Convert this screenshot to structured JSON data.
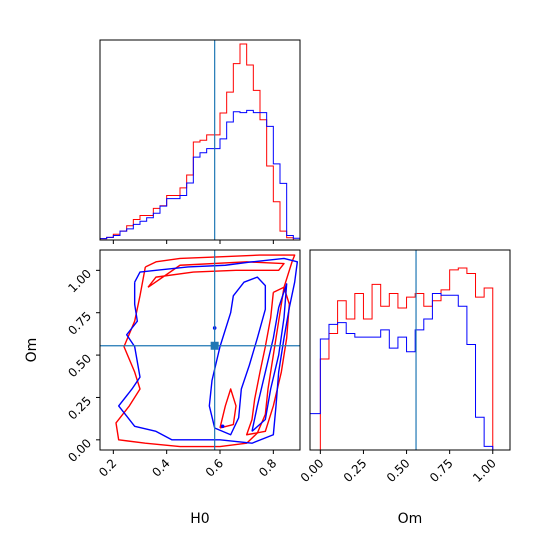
{
  "chart_data": {
    "type": "corner",
    "colors": {
      "red": "#ff0000",
      "blue": "#0000ff",
      "truth": "#1f77b4"
    },
    "truth": {
      "H0": 0.58,
      "Om": 0.555
    },
    "panels": [
      {
        "id": "hist-H0",
        "type": "histogram",
        "xlim": [
          0.15,
          0.9
        ],
        "bin_edges": [
          0.15,
          0.175,
          0.2,
          0.225,
          0.25,
          0.275,
          0.3,
          0.325,
          0.35,
          0.375,
          0.4,
          0.425,
          0.45,
          0.475,
          0.5,
          0.525,
          0.55,
          0.575,
          0.6,
          0.625,
          0.65,
          0.675,
          0.7,
          0.725,
          0.75,
          0.775,
          0.8,
          0.825,
          0.85,
          0.875,
          0.9
        ],
        "series": [
          {
            "color": "red",
            "values": [
              0.3,
              0.6,
              1.3,
              2.0,
              3.2,
              4.6,
              5.5,
              5.5,
              7.1,
              7.7,
              10.0,
              10.0,
              11.7,
              14.6,
              22.0,
              22.4,
              23.6,
              23.6,
              28.5,
              33.2,
              39.6,
              44.0,
              39.3,
              33.6,
              27.0,
              16.6,
              8.6,
              2.0,
              0.5,
              0.0
            ]
          },
          {
            "color": "blue",
            "values": [
              0.3,
              0.6,
              1.0,
              2.0,
              2.5,
              3.5,
              4.2,
              5.0,
              6.0,
              7.6,
              9.3,
              9.3,
              10.0,
              12.8,
              18.6,
              19.6,
              20.5,
              20.5,
              22.7,
              26.5,
              28.8,
              28.6,
              29.1,
              28.6,
              28.6,
              25.5,
              17.1,
              12.7,
              1.0,
              0.4
            ]
          }
        ]
      },
      {
        "id": "joint-H0-Om",
        "type": "contour",
        "xlabel": "H0",
        "ylabel": "Om",
        "xlim": [
          0.15,
          0.9
        ],
        "ylim": [
          -0.06,
          1.12
        ],
        "xticks": [
          0.2,
          0.4,
          0.6,
          0.8
        ],
        "xtick_labels": [
          "0.2",
          "0.4",
          "0.6",
          "0.8"
        ],
        "yticks": [
          0.0,
          0.25,
          0.5,
          0.75,
          1.0
        ],
        "ytick_labels": [
          "0.00",
          "0.25",
          "0.50",
          "0.75",
          "1.00"
        ],
        "contours": [
          {
            "color": "red",
            "points": [
              [
                0.32,
                1.02
              ],
              [
                0.36,
                1.05
              ],
              [
                0.45,
                1.07
              ],
              [
                0.6,
                1.08
              ],
              [
                0.75,
                1.09
              ],
              [
                0.88,
                1.09
              ],
              [
                0.87,
                1.05
              ],
              [
                0.84,
                0.9
              ],
              [
                0.82,
                0.7
              ],
              [
                0.8,
                0.5
              ],
              [
                0.78,
                0.3
              ],
              [
                0.77,
                0.15
              ],
              [
                0.74,
                0.04
              ],
              [
                0.7,
                -0.02
              ],
              [
                0.6,
                -0.04
              ],
              [
                0.45,
                -0.04
              ],
              [
                0.32,
                -0.02
              ],
              [
                0.22,
                0.0
              ],
              [
                0.21,
                0.1
              ],
              [
                0.26,
                0.2
              ],
              [
                0.3,
                0.3
              ],
              [
                0.28,
                0.4
              ],
              [
                0.24,
                0.55
              ],
              [
                0.28,
                0.7
              ],
              [
                0.3,
                0.85
              ],
              [
                0.32,
                1.02
              ]
            ]
          },
          {
            "color": "red",
            "points": [
              [
                0.8,
                0.87
              ],
              [
                0.79,
                0.72
              ],
              [
                0.77,
                0.55
              ],
              [
                0.75,
                0.4
              ],
              [
                0.73,
                0.24
              ],
              [
                0.72,
                0.12
              ],
              [
                0.7,
                0.03
              ],
              [
                0.77,
                0.05
              ],
              [
                0.8,
                0.2
              ],
              [
                0.83,
                0.4
              ],
              [
                0.85,
                0.6
              ],
              [
                0.86,
                0.8
              ],
              [
                0.84,
                0.9
              ],
              [
                0.8,
                0.87
              ]
            ]
          },
          {
            "color": "red",
            "points": [
              [
                0.6,
                0.07
              ],
              [
                0.62,
                0.2
              ],
              [
                0.64,
                0.3
              ],
              [
                0.66,
                0.2
              ],
              [
                0.65,
                0.09
              ],
              [
                0.6,
                0.07
              ]
            ]
          },
          {
            "color": "red",
            "points": [
              [
                0.33,
                0.9
              ],
              [
                0.36,
                0.96
              ],
              [
                0.5,
                0.99
              ],
              [
                0.66,
                1.0
              ],
              [
                0.82,
                1.0
              ],
              [
                0.84,
                1.04
              ],
              [
                0.7,
                1.05
              ],
              [
                0.45,
                1.03
              ],
              [
                0.33,
                0.9
              ]
            ]
          },
          {
            "color": "blue",
            "points": [
              [
                0.28,
                0.93
              ],
              [
                0.3,
                0.99
              ],
              [
                0.36,
                1.0
              ],
              [
                0.48,
                1.02
              ],
              [
                0.62,
                1.03
              ],
              [
                0.72,
                1.05
              ],
              [
                0.84,
                1.07
              ],
              [
                0.89,
                1.05
              ],
              [
                0.88,
                0.93
              ],
              [
                0.86,
                0.78
              ],
              [
                0.84,
                0.6
              ],
              [
                0.82,
                0.4
              ],
              [
                0.81,
                0.2
              ],
              [
                0.8,
                0.03
              ],
              [
                0.72,
                -0.02
              ],
              [
                0.6,
                0.0
              ],
              [
                0.42,
                0.0
              ],
              [
                0.36,
                0.05
              ],
              [
                0.28,
                0.08
              ],
              [
                0.22,
                0.2
              ],
              [
                0.27,
                0.3
              ],
              [
                0.3,
                0.37
              ],
              [
                0.28,
                0.55
              ],
              [
                0.25,
                0.62
              ],
              [
                0.29,
                0.7
              ],
              [
                0.28,
                0.8
              ],
              [
                0.28,
                0.93
              ]
            ]
          },
          {
            "color": "blue",
            "points": [
              [
                0.58,
                0.07
              ],
              [
                0.56,
                0.2
              ],
              [
                0.57,
                0.35
              ],
              [
                0.6,
                0.55
              ],
              [
                0.64,
                0.75
              ],
              [
                0.65,
                0.85
              ],
              [
                0.69,
                0.93
              ],
              [
                0.74,
                0.96
              ],
              [
                0.77,
                0.91
              ],
              [
                0.77,
                0.77
              ],
              [
                0.74,
                0.6
              ],
              [
                0.71,
                0.44
              ],
              [
                0.68,
                0.3
              ],
              [
                0.67,
                0.13
              ],
              [
                0.64,
                0.03
              ],
              [
                0.58,
                0.07
              ]
            ]
          },
          {
            "color": "blue",
            "points": [
              [
                0.72,
                0.05
              ],
              [
                0.74,
                0.2
              ],
              [
                0.77,
                0.4
              ],
              [
                0.8,
                0.6
              ],
              [
                0.82,
                0.78
              ],
              [
                0.85,
                0.92
              ],
              [
                0.84,
                0.72
              ],
              [
                0.82,
                0.5
              ],
              [
                0.79,
                0.3
              ],
              [
                0.77,
                0.12
              ],
              [
                0.72,
                0.05
              ]
            ]
          }
        ]
      },
      {
        "id": "hist-Om",
        "type": "histogram",
        "xlabel": "Om",
        "xlim": [
          -0.06,
          1.1
        ],
        "xticks": [
          0.0,
          0.25,
          0.5,
          0.75,
          1.0
        ],
        "xtick_labels": [
          "0.00",
          "0.25",
          "0.50",
          "0.75",
          "1.00"
        ],
        "bin_edges": [
          -0.06,
          0.0,
          0.05,
          0.1,
          0.15,
          0.2,
          0.25,
          0.3,
          0.35,
          0.4,
          0.45,
          0.5,
          0.55,
          0.6,
          0.65,
          0.7,
          0.75,
          0.8,
          0.85,
          0.9,
          0.95,
          1.0,
          1.05,
          1.1
        ],
        "series": [
          {
            "color": "red",
            "values": [
              0.0,
              0.5,
              0.64,
              0.82,
              0.72,
              0.86,
              0.72,
              0.91,
              0.79,
              0.86,
              0.78,
              0.84,
              0.86,
              0.79,
              0.82,
              0.88,
              0.99,
              1.0,
              0.97,
              0.84,
              0.89,
              0.0,
              0.0
            ]
          },
          {
            "color": "blue",
            "values": [
              0.2,
              0.61,
              0.69,
              0.7,
              0.64,
              0.62,
              0.62,
              0.62,
              0.66,
              0.56,
              0.62,
              0.54,
              0.66,
              0.72,
              0.86,
              0.85,
              0.85,
              0.79,
              0.58,
              0.18,
              0.02,
              0.0,
              0.0
            ]
          }
        ]
      }
    ]
  }
}
